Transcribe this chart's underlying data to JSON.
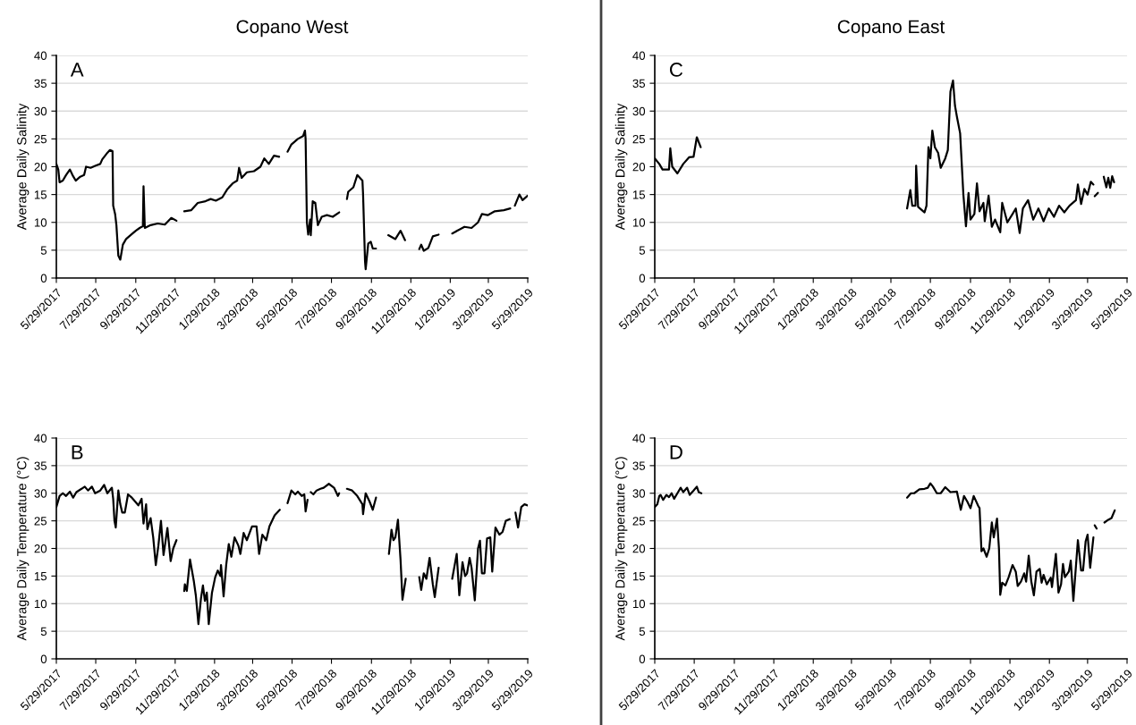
{
  "chart_data": [
    {
      "type": "line",
      "title": "Copano West",
      "ylabel": "Average Daily Salinity",
      "annotations": [
        "A"
      ],
      "grid": "y",
      "ylim": [
        0,
        40
      ],
      "yticks": [
        0,
        5,
        10,
        15,
        20,
        25,
        30,
        35,
        40
      ],
      "xlim": [
        "2017-05-29",
        "2019-05-29"
      ],
      "xticks": [
        {
          "value": "2017-05-29",
          "label": "5/29/2017"
        },
        {
          "value": "2017-07-29",
          "label": "7/29/2017"
        },
        {
          "value": "2017-09-29",
          "label": "9/29/2017"
        },
        {
          "value": "2017-11-29",
          "label": "11/29/2017"
        },
        {
          "value": "2018-01-29",
          "label": "1/29/2018"
        },
        {
          "value": "2018-03-29",
          "label": "3/29/2018"
        },
        {
          "value": "2018-05-29",
          "label": "5/29/2018"
        },
        {
          "value": "2018-07-29",
          "label": "7/29/2018"
        },
        {
          "value": "2018-09-29",
          "label": "9/29/2018"
        },
        {
          "value": "2018-11-29",
          "label": "11/29/2018"
        },
        {
          "value": "2019-01-29",
          "label": "1/29/2019"
        },
        {
          "value": "2019-03-29",
          "label": "3/29/2019"
        },
        {
          "value": "2019-05-29",
          "label": "5/29/2019"
        }
      ],
      "series": [
        {
          "color": "#000000",
          "x": [
            "2017-05-29",
            "2017-06-01",
            "2017-06-03",
            "2017-06-08",
            "2017-06-13",
            "2017-06-19",
            "2017-06-23",
            "2017-06-28",
            "2017-07-05",
            "2017-07-11",
            "2017-07-14",
            "2017-07-21",
            "2017-07-29",
            "2017-08-05",
            "2017-08-08",
            "2017-08-16",
            "2017-08-20",
            "2017-08-24",
            "2017-08-25",
            "2017-08-28",
            "2017-08-30",
            "2017-09-02",
            "2017-09-05",
            "2017-09-09",
            "2017-09-14",
            "2017-09-22",
            "2017-09-29",
            "2017-10-05",
            "2017-10-10",
            "2017-10-11",
            "2017-10-13",
            "2017-10-22",
            "2017-11-02",
            "2017-11-13",
            "2017-11-23",
            "2017-12-01",
            "2017-12-07",
            "2017-12-13",
            "2017-12-24",
            "2018-01-03",
            "2018-01-15",
            "2018-01-23",
            "2018-01-31",
            "2018-02-10",
            "2018-02-18",
            "2018-02-26",
            "2018-03-05",
            "2018-03-08",
            "2018-03-12",
            "2018-03-20",
            "2018-03-31",
            "2018-04-10",
            "2018-04-16",
            "2018-04-23",
            "2018-05-01",
            "2018-05-09",
            "2018-05-15",
            "2018-05-22",
            "2018-05-28",
            "2018-06-07",
            "2018-06-15",
            "2018-06-18",
            "2018-06-19",
            "2018-06-21",
            "2018-06-23",
            "2018-06-26",
            "2018-06-27",
            "2018-06-30",
            "2018-07-04",
            "2018-07-08",
            "2018-07-14",
            "2018-07-22",
            "2018-07-31",
            "2018-08-10",
            "2018-08-16",
            "2018-08-22",
            "2018-08-24",
            "2018-09-01",
            "2018-09-07",
            "2018-09-15",
            "2018-09-16",
            "2018-09-19",
            "2018-09-20",
            "2018-09-24",
            "2018-09-28",
            "2018-10-01",
            "2018-10-06",
            "2018-10-15",
            "2018-10-25",
            "2018-11-05",
            "2018-11-13",
            "2018-11-20",
            "2018-12-01",
            "2018-12-12",
            "2018-12-15",
            "2018-12-19",
            "2018-12-26",
            "2019-01-02",
            "2019-01-11",
            "2019-01-20",
            "2019-02-01",
            "2019-02-09",
            "2019-02-20",
            "2019-03-03",
            "2019-03-13",
            "2019-03-19",
            "2019-03-28",
            "2019-04-08",
            "2019-04-22",
            "2019-05-02"
          ],
          "values": [
            20.5,
            19.5,
            17.2,
            17.5,
            18.5,
            19.5,
            18.5,
            17.5,
            18.2,
            18.5,
            20,
            19.8,
            20.2,
            20.5,
            21.3,
            22.5,
            23,
            22.8,
            13,
            11.5,
            9.5,
            4,
            3.3,
            6,
            7,
            7.8,
            8.5,
            9,
            9.3,
            16.5,
            9,
            9.5,
            9.8,
            9.6,
            10.8,
            10.3,
            null,
            12,
            12.2,
            13.5,
            13.8,
            14.2,
            13.9,
            14.5,
            16,
            17,
            17.5,
            19.8,
            18,
            19,
            19.2,
            20,
            21.5,
            20.5,
            22,
            21.8,
            null,
            22.7,
            24,
            25,
            25.5,
            26.5,
            25,
            10,
            7.8,
            10.5,
            7.7,
            13.8,
            13.5,
            9.5,
            11,
            11.3,
            11,
            11.8,
            null,
            14.2,
            15.5,
            16.3,
            18.5,
            17.5,
            15,
            3,
            1.6,
            6.2,
            6.5,
            5.3,
            5.3,
            null,
            7.7,
            7,
            8.5,
            6.8,
            null,
            5.2,
            6,
            4.9,
            5.4,
            7.5,
            7.8,
            null,
            8,
            8.5,
            9.2,
            9,
            10,
            11.5,
            11.3,
            12,
            12.2,
            12.5
          ]
        },
        {
          "color": "#000000",
          "x": [
            "2019-05-09",
            "2019-05-16",
            "2019-05-21",
            "2019-05-29"
          ],
          "values": [
            13,
            15,
            14,
            14.8
          ]
        }
      ]
    },
    {
      "type": "line",
      "title": "Copano East",
      "ylabel": "Average Daily Salinity",
      "annotations": [
        "C"
      ],
      "grid": "y",
      "ylim": [
        0,
        40
      ],
      "yticks": [
        0,
        5,
        10,
        15,
        20,
        25,
        30,
        35,
        40
      ],
      "xlim": [
        "2017-05-29",
        "2019-05-29"
      ],
      "xticks": [
        {
          "value": "2017-05-29",
          "label": "5/29/2017"
        },
        {
          "value": "2017-07-29",
          "label": "7/29/2017"
        },
        {
          "value": "2017-09-29",
          "label": "9/29/2017"
        },
        {
          "value": "2017-11-29",
          "label": "11/29/2017"
        },
        {
          "value": "2018-01-29",
          "label": "1/29/2018"
        },
        {
          "value": "2018-03-29",
          "label": "3/29/2018"
        },
        {
          "value": "2018-05-29",
          "label": "5/29/2018"
        },
        {
          "value": "2018-07-29",
          "label": "7/29/2018"
        },
        {
          "value": "2018-09-29",
          "label": "9/29/2018"
        },
        {
          "value": "2018-11-29",
          "label": "11/29/2018"
        },
        {
          "value": "2019-01-29",
          "label": "1/29/2019"
        },
        {
          "value": "2019-03-29",
          "label": "3/29/2019"
        },
        {
          "value": "2019-05-29",
          "label": "5/29/2019"
        }
      ],
      "series": [
        {
          "color": "#000000",
          "x": [
            "2017-05-29",
            "2017-06-05",
            "2017-06-10",
            "2017-06-16",
            "2017-06-20",
            "2017-06-22",
            "2017-06-25",
            "2017-07-03",
            "2017-07-12",
            "2017-07-21",
            "2017-07-28",
            "2017-08-02",
            "2017-08-08",
            "2018-01-01",
            "2018-06-23",
            "2018-06-28",
            "2018-07-01",
            "2018-07-06",
            "2018-07-07",
            "2018-07-10",
            "2018-07-20",
            "2018-07-23",
            "2018-07-26",
            "2018-07-29",
            "2018-08-01",
            "2018-08-05",
            "2018-08-10",
            "2018-08-14",
            "2018-08-21",
            "2018-08-25",
            "2018-08-29",
            "2018-09-02",
            "2018-09-05",
            "2018-09-08",
            "2018-09-13",
            "2018-09-18",
            "2018-09-22",
            "2018-09-26",
            "2018-09-29",
            "2018-10-05",
            "2018-10-09",
            "2018-10-13",
            "2018-10-19",
            "2018-10-21",
            "2018-10-27",
            "2018-11-01",
            "2018-11-06",
            "2018-11-14",
            "2018-11-17",
            "2018-11-25",
            "2018-12-03",
            "2018-12-08",
            "2018-12-14",
            "2018-12-19",
            "2018-12-27",
            "2019-01-04",
            "2019-01-12",
            "2019-01-20",
            "2019-01-28",
            "2019-02-05",
            "2019-02-13",
            "2019-02-21",
            "2019-03-01",
            "2019-03-11",
            "2019-03-14",
            "2019-03-19",
            "2019-03-24",
            "2019-03-29",
            "2019-04-03",
            "2019-04-07",
            "2019-04-17",
            "2019-04-23",
            "2019-04-27",
            "2019-04-30",
            "2019-05-03",
            "2019-05-06",
            "2019-05-09"
          ],
          "values": [
            21.5,
            20.5,
            19.5,
            19.5,
            19.5,
            23.3,
            20,
            18.8,
            20.5,
            21.7,
            21.8,
            25.3,
            23.5,
            null,
            12.5,
            15.8,
            13,
            13,
            20.2,
            12.8,
            11.8,
            13,
            23.5,
            21.5,
            26.5,
            23.5,
            22.5,
            19.8,
            21.5,
            23,
            33.5,
            35.5,
            31,
            29,
            26,
            15,
            9.3,
            15.3,
            10.5,
            11.5,
            17,
            12,
            13.5,
            10.2,
            14.8,
            9.2,
            10.5,
            8.2,
            13.5,
            10,
            11.5,
            12.5,
            8.1,
            12.5,
            14,
            10.5,
            12.5,
            10.2,
            12.5,
            11,
            13,
            11.8,
            13,
            14,
            16.8,
            13.3,
            16,
            15,
            17.3,
            16.8,
            null,
            18.2,
            16.3,
            18,
            16.2,
            18.3,
            17.2
          ]
        },
        {
          "color": "#000000",
          "x": [
            "2019-04-09",
            "2019-04-14"
          ],
          "values": [
            14.7,
            15.3
          ]
        }
      ]
    },
    {
      "type": "line",
      "ylabel": "Average Daily Temperature (°C)",
      "annotations": [
        "B"
      ],
      "grid": "y",
      "ylim": [
        0,
        40
      ],
      "yticks": [
        0,
        5,
        10,
        15,
        20,
        25,
        30,
        35,
        40
      ],
      "xlim": [
        "2017-05-29",
        "2019-05-29"
      ],
      "xticks": [
        {
          "value": "2017-05-29",
          "label": "5/29/2017"
        },
        {
          "value": "2017-07-29",
          "label": "7/29/2017"
        },
        {
          "value": "2017-09-29",
          "label": "9/29/2017"
        },
        {
          "value": "2017-11-29",
          "label": "11/29/2017"
        },
        {
          "value": "2018-01-29",
          "label": "1/29/2018"
        },
        {
          "value": "2018-03-29",
          "label": "3/29/2018"
        },
        {
          "value": "2018-05-29",
          "label": "5/29/2018"
        },
        {
          "value": "2018-07-29",
          "label": "7/29/2018"
        },
        {
          "value": "2018-09-29",
          "label": "9/29/2018"
        },
        {
          "value": "2018-11-29",
          "label": "11/29/2018"
        },
        {
          "value": "2019-01-29",
          "label": "1/29/2019"
        },
        {
          "value": "2019-03-29",
          "label": "3/29/2019"
        },
        {
          "value": "2019-05-29",
          "label": "5/29/2019"
        }
      ],
      "series": [
        {
          "color": "#000000",
          "x": [
            "2017-05-29",
            "2017-06-03",
            "2017-06-08",
            "2017-06-13",
            "2017-06-19",
            "2017-06-24",
            "2017-06-29",
            "2017-07-07",
            "2017-07-12",
            "2017-07-17",
            "2017-07-23",
            "2017-07-28",
            "2017-08-05",
            "2017-08-11",
            "2017-08-16",
            "2017-08-23",
            "2017-08-25",
            "2017-08-27",
            "2017-08-29",
            "2017-09-02",
            "2017-09-05",
            "2017-09-08",
            "2017-09-12",
            "2017-09-17",
            "2017-09-22",
            "2017-09-28",
            "2017-10-03",
            "2017-10-08",
            "2017-10-11",
            "2017-10-15",
            "2017-10-17",
            "2017-10-22",
            "2017-10-26",
            "2017-10-30",
            "2017-11-03",
            "2017-11-07",
            "2017-11-11",
            "2017-11-17",
            "2017-11-22",
            "2017-11-26",
            "2017-12-01",
            "2017-12-07",
            "2017-12-13",
            "2017-12-14",
            "2017-12-17",
            "2017-12-22",
            "2017-12-28",
            "2017-12-31",
            "2018-01-04",
            "2018-01-08",
            "2018-01-11",
            "2018-01-14",
            "2018-01-17",
            "2018-01-20",
            "2018-01-25",
            "2018-01-30",
            "2018-02-03",
            "2018-02-07",
            "2018-02-08",
            "2018-02-12",
            "2018-02-16",
            "2018-02-20",
            "2018-02-24",
            "2018-03-01",
            "2018-03-07",
            "2018-03-10",
            "2018-03-15",
            "2018-03-20",
            "2018-03-28",
            "2018-04-04",
            "2018-04-08",
            "2018-04-13",
            "2018-04-19",
            "2018-04-24",
            "2018-05-02",
            "2018-05-10",
            "2018-05-16",
            "2018-05-22",
            "2018-05-28",
            "2018-06-03",
            "2018-06-07",
            "2018-06-13",
            "2018-06-17",
            "2018-06-19",
            "2018-06-22",
            "2018-06-25",
            "2018-06-27",
            "2018-07-01",
            "2018-07-06",
            "2018-07-12",
            "2018-07-17",
            "2018-07-25",
            "2018-08-02",
            "2018-08-08",
            "2018-08-10",
            "2018-08-16",
            "2018-08-22",
            "2018-08-30",
            "2018-09-07",
            "2018-09-15",
            "2018-09-16",
            "2018-09-20",
            "2018-09-26",
            "2018-10-01",
            "2018-10-06",
            "2018-10-16",
            "2018-10-26",
            "2018-10-30",
            "2018-11-02",
            "2018-11-05",
            "2018-11-09",
            "2018-11-13",
            "2018-11-16",
            "2018-11-21",
            "2018-12-01",
            "2018-12-12",
            "2018-12-15",
            "2018-12-19",
            "2018-12-23",
            "2018-12-28",
            "2019-01-02",
            "2019-01-05",
            "2019-01-11",
            "2019-01-20",
            "2019-02-01",
            "2019-02-08",
            "2019-02-12",
            "2019-02-17",
            "2019-02-21",
            "2019-02-24",
            "2019-02-28",
            "2019-03-03",
            "2019-03-08",
            "2019-03-13",
            "2019-03-16",
            "2019-03-19",
            "2019-03-23",
            "2019-03-27",
            "2019-04-01",
            "2019-04-04",
            "2019-04-09",
            "2019-04-15",
            "2019-04-20",
            "2019-04-25",
            "2019-05-01",
            "2019-05-05",
            "2019-05-10",
            "2019-05-14",
            "2019-05-19",
            "2019-05-24",
            "2019-05-29"
          ],
          "values": [
            27.5,
            29.5,
            30,
            29.5,
            30.3,
            29.2,
            30.2,
            30.8,
            31.2,
            30.5,
            31.2,
            30,
            30.5,
            31.5,
            30,
            31,
            29,
            25,
            23.8,
            30.5,
            28,
            26.5,
            26.5,
            29.8,
            29.3,
            28.5,
            27.8,
            29,
            24.5,
            28,
            23.5,
            25.5,
            22,
            17,
            20.5,
            25,
            18.8,
            23.7,
            17.7,
            20,
            21.5,
            null,
            12.3,
            13.5,
            12.3,
            18,
            14,
            11.5,
            6.3,
            11,
            13.3,
            10.5,
            12,
            6.3,
            12,
            14.8,
            16,
            15,
            17,
            11.3,
            17,
            20.8,
            18.5,
            22,
            20.5,
            19,
            22.8,
            21.5,
            24,
            24,
            19,
            22.5,
            21.5,
            24,
            26,
            27,
            null,
            28.2,
            30.5,
            29.8,
            30.3,
            29.5,
            29.8,
            26.7,
            28.8,
            null,
            30.2,
            29.8,
            30.5,
            30.8,
            31,
            31.7,
            31,
            29.5,
            30,
            null,
            30.8,
            30.5,
            29.5,
            28,
            26.2,
            30,
            28.5,
            27,
            29.2,
            null,
            19,
            23.4,
            21.5,
            22,
            25.2,
            18,
            10.7,
            14.5,
            null,
            14.8,
            12.5,
            15.5,
            14.5,
            18.3,
            13.5,
            11.2,
            16.5,
            null,
            14.5,
            19,
            11.5,
            17.5,
            15,
            15.5,
            18.3,
            16.5,
            10.6,
            20,
            21.4,
            15.5,
            15.5,
            21.8,
            22,
            15.8,
            23.8,
            22.5,
            23,
            25,
            25.3,
            null,
            26.5,
            23.8,
            27.5,
            28,
            27.8
          ]
        }
      ]
    },
    {
      "type": "line",
      "ylabel": "Average Daily Temperature (°C)",
      "annotations": [
        "D"
      ],
      "grid": "y",
      "ylim": [
        0,
        40
      ],
      "yticks": [
        0,
        5,
        10,
        15,
        20,
        25,
        30,
        35,
        40
      ],
      "xlim": [
        "2017-05-29",
        "2019-05-29"
      ],
      "xticks": [
        {
          "value": "2017-05-29",
          "label": "5/29/2017"
        },
        {
          "value": "2017-07-29",
          "label": "7/29/2017"
        },
        {
          "value": "2017-09-29",
          "label": "9/29/2017"
        },
        {
          "value": "2017-11-29",
          "label": "11/29/2017"
        },
        {
          "value": "2018-01-29",
          "label": "1/29/2018"
        },
        {
          "value": "2018-03-29",
          "label": "3/29/2018"
        },
        {
          "value": "2018-05-29",
          "label": "5/29/2018"
        },
        {
          "value": "2018-07-29",
          "label": "7/29/2018"
        },
        {
          "value": "2018-09-29",
          "label": "9/29/2018"
        },
        {
          "value": "2018-11-29",
          "label": "11/29/2018"
        },
        {
          "value": "2019-01-29",
          "label": "1/29/2019"
        },
        {
          "value": "2019-03-29",
          "label": "3/29/2019"
        },
        {
          "value": "2019-05-29",
          "label": "5/29/2019"
        }
      ],
      "series": [
        {
          "color": "#000000",
          "x": [
            "2017-05-29",
            "2017-06-02",
            "2017-06-05",
            "2017-06-07",
            "2017-06-11",
            "2017-06-16",
            "2017-06-20",
            "2017-06-24",
            "2017-06-28",
            "2017-07-03",
            "2017-07-08",
            "2017-07-12",
            "2017-07-18",
            "2017-07-22",
            "2017-07-28",
            "2017-08-02",
            "2017-08-05",
            "2017-08-09",
            "2018-01-01",
            "2018-06-23",
            "2018-06-29",
            "2018-07-04",
            "2018-07-12",
            "2018-07-20",
            "2018-07-25",
            "2018-07-29",
            "2018-08-02",
            "2018-08-08",
            "2018-08-14",
            "2018-08-21",
            "2018-08-29",
            "2018-09-08",
            "2018-09-14",
            "2018-09-19",
            "2018-09-24",
            "2018-09-29",
            "2018-10-04",
            "2018-10-11",
            "2018-10-13",
            "2018-10-16",
            "2018-10-19",
            "2018-10-24",
            "2018-10-28",
            "2018-11-01",
            "2018-11-04",
            "2018-11-09",
            "2018-11-12",
            "2018-11-14",
            "2018-11-17",
            "2018-11-22",
            "2018-11-27",
            "2018-12-03",
            "2018-12-08",
            "2018-12-11",
            "2018-12-16",
            "2018-12-21",
            "2018-12-24",
            "2018-12-28",
            "2019-01-01",
            "2019-01-05",
            "2019-01-09",
            "2019-01-14",
            "2019-01-17",
            "2019-01-20",
            "2019-01-25",
            "2019-01-31",
            "2019-02-02",
            "2019-02-08",
            "2019-02-12",
            "2019-02-16",
            "2019-02-19",
            "2019-02-22",
            "2019-02-28",
            "2019-03-03",
            "2019-03-07",
            "2019-03-14",
            "2019-03-19",
            "2019-03-22",
            "2019-03-26",
            "2019-03-29",
            "2019-04-02",
            "2019-04-07",
            "2019-04-17",
            "2019-04-24",
            "2019-04-30",
            "2019-05-05",
            "2019-05-10"
          ],
          "values": [
            27.5,
            28,
            29.5,
            29.7,
            28.8,
            29.7,
            29.3,
            30,
            29,
            30,
            31,
            30.2,
            31,
            29.7,
            30.5,
            31.2,
            30.2,
            30,
            null,
            29.2,
            30,
            30,
            30.7,
            30.8,
            31,
            31.8,
            31.2,
            30,
            30,
            31.1,
            30.2,
            30.3,
            27,
            29.5,
            28.5,
            27.3,
            29.5,
            27.7,
            27.3,
            19.5,
            20,
            18.5,
            20,
            24.7,
            22,
            25.4,
            20,
            11.6,
            13.8,
            13.3,
            14.8,
            17,
            15.8,
            13.2,
            14,
            15.5,
            14,
            18.7,
            14,
            11.5,
            15.8,
            16.3,
            13.8,
            15.2,
            13.5,
            14.7,
            13,
            19,
            12,
            13.5,
            17.2,
            14.8,
            15.8,
            17.8,
            10.5,
            21.5,
            16,
            16,
            21.3,
            22.5,
            16.5,
            22,
            null,
            24.7,
            25.2,
            25.5,
            26.9
          ]
        },
        {
          "color": "#000000",
          "x": [
            "2019-04-09",
            "2019-04-12"
          ],
          "values": [
            24.2,
            23.6
          ]
        }
      ]
    }
  ]
}
